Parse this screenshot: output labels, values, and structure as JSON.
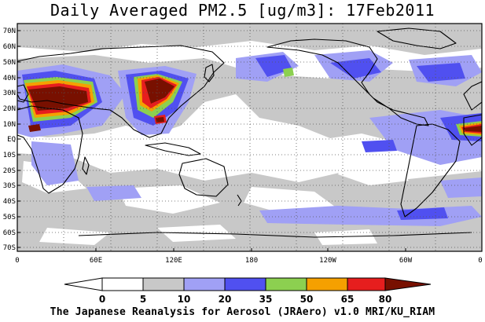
{
  "title": "Daily Averaged PM2.5 [ug/m3]: 17Feb2011",
  "footer": "The Japanese Reanalysis for Aerosol (JRAero) v1.0 MRI/KU_RIAM",
  "lat_labels": [
    "70N",
    "60N",
    "50N",
    "40N",
    "30N",
    "20N",
    "10N",
    "EQ",
    "10S",
    "20S",
    "30S",
    "40S",
    "50S",
    "60S",
    "70S"
  ],
  "lon_labels": [
    "0",
    "60E",
    "120E",
    "180",
    "120W",
    "60W",
    "0"
  ],
  "colorbar": {
    "labels": [
      "0",
      "5",
      "10",
      "20",
      "35",
      "50",
      "65",
      "80"
    ],
    "colors": [
      "#ffffff",
      "#c8c8c8",
      "#a0a0f5",
      "#5050f0",
      "#8cd050",
      "#f5a000",
      "#e61e1e",
      "#781000"
    ]
  },
  "colors": {
    "land_outline": "#000000",
    "grid": "#555555"
  }
}
